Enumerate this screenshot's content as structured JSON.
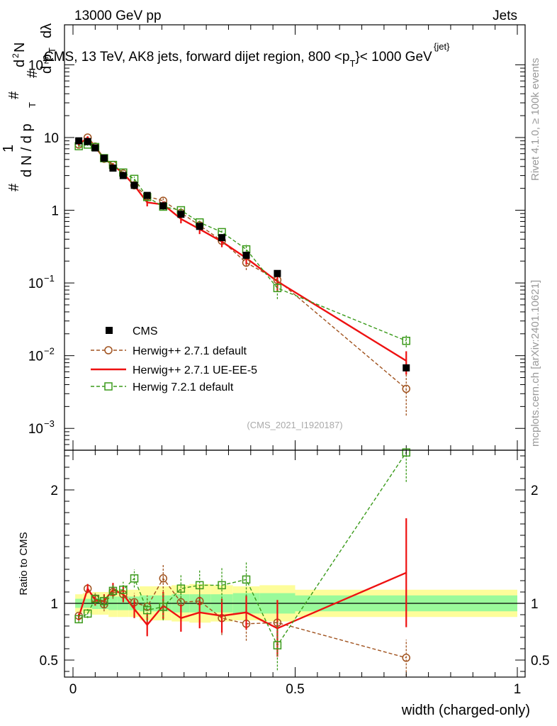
{
  "header": {
    "left": "13000 GeV pp",
    "right": "Jets",
    "side_top": "Rivet 4.1.0, ≥ 100k events",
    "side_bottom": "mcplots.cern.ch [arXiv:2401.10621]",
    "watermark": "(CMS_2021_I1920187)"
  },
  "chart_data": [
    {
      "type": "line",
      "scale": "log",
      "title": "CMS, 13 TeV, AK8 jets, forward dijet region, 800 <p",
      "title_sub": "T",
      "title_sup": "{jet}",
      "title_end": "}< 1000 GeV",
      "ylabel_parts": {
        "one": "1",
        "dN": "d N / d p",
        "T": "T",
        "hash": "#",
        "num": "d",
        "num_sup": "2",
        "num_N": "N",
        "den": "d p",
        "den_T": "T",
        "dl": "dλ"
      },
      "xlim": [
        0,
        1
      ],
      "ylim_log10": [
        -3.3,
        2.55
      ],
      "y_ticks": [
        {
          "exp": -3,
          "label": "10",
          "sup": "−3"
        },
        {
          "exp": -2,
          "label": "10",
          "sup": "−2"
        },
        {
          "exp": -1,
          "label": "10",
          "sup": "−1"
        },
        {
          "exp": 0,
          "label": "1",
          "sup": ""
        },
        {
          "exp": 1,
          "label": "10",
          "sup": ""
        },
        {
          "exp": 2,
          "label": "10",
          "sup": "2"
        }
      ],
      "legend": [
        {
          "name": "CMS",
          "style": "data"
        },
        {
          "name": "Herwig++ 2.7.1 default",
          "style": "brown"
        },
        {
          "name": "Herwig++ 2.7.1 UE-EE-5",
          "style": "red"
        },
        {
          "name": "Herwig 7.2.1 default",
          "style": "green"
        }
      ],
      "data_points": {
        "x": [
          0.013,
          0.033,
          0.05,
          0.07,
          0.09,
          0.113,
          0.138,
          0.167,
          0.203,
          0.243,
          0.285,
          0.335,
          0.39,
          0.46,
          0.75
        ],
        "y": [
          9.0,
          8.8,
          7.2,
          5.2,
          3.8,
          3.0,
          2.2,
          1.6,
          1.15,
          0.88,
          0.6,
          0.42,
          0.24,
          0.135,
          0.0068
        ],
        "bins": [
          [
            0.005,
            0.022
          ],
          [
            0.022,
            0.043
          ],
          [
            0.043,
            0.058
          ],
          [
            0.058,
            0.08
          ],
          [
            0.08,
            0.1
          ],
          [
            0.1,
            0.125
          ],
          [
            0.125,
            0.15
          ],
          [
            0.15,
            0.185
          ],
          [
            0.185,
            0.222
          ],
          [
            0.222,
            0.262
          ],
          [
            0.262,
            0.31
          ],
          [
            0.31,
            0.36
          ],
          [
            0.36,
            0.42
          ],
          [
            0.42,
            0.5
          ],
          [
            0.5,
            1.0
          ]
        ]
      },
      "series": [
        {
          "name": "Herwig++ 2.7.1 default",
          "color": "#a0521e",
          "dashed": true,
          "marker": "circle",
          "x": [
            0.013,
            0.033,
            0.05,
            0.07,
            0.09,
            0.113,
            0.138,
            0.167,
            0.203,
            0.243,
            0.285,
            0.335,
            0.39,
            0.46,
            0.75
          ],
          "y": [
            8.0,
            10.0,
            7.5,
            5.1,
            4.2,
            3.2,
            2.2,
            1.55,
            1.35,
            0.92,
            0.62,
            0.38,
            0.19,
            0.11,
            0.0035
          ],
          "err": [
            0.3,
            0.4,
            0.3,
            0.3,
            0.25,
            0.2,
            0.15,
            0.15,
            0.12,
            0.1,
            0.08,
            0.06,
            0.04,
            0.03,
            0.002
          ]
        },
        {
          "name": "Herwig++ 2.7.1 UE-EE-5",
          "color": "#ee1111",
          "dashed": false,
          "marker": "none",
          "x": [
            0.013,
            0.033,
            0.05,
            0.07,
            0.09,
            0.113,
            0.138,
            0.167,
            0.203,
            0.243,
            0.285,
            0.335,
            0.39,
            0.46,
            0.75
          ],
          "y": [
            8.0,
            10.0,
            7.5,
            5.1,
            4.2,
            3.2,
            2.2,
            1.28,
            1.2,
            0.76,
            0.55,
            0.37,
            0.22,
            0.105,
            0.0085
          ],
          "err": [
            0.3,
            0.4,
            0.3,
            0.3,
            0.25,
            0.2,
            0.15,
            0.15,
            0.12,
            0.1,
            0.08,
            0.06,
            0.04,
            0.03,
            0.003
          ]
        },
        {
          "name": "Herwig 7.2.1 default",
          "color": "#3a9a1a",
          "dashed": true,
          "marker": "square",
          "x": [
            0.013,
            0.033,
            0.05,
            0.07,
            0.09,
            0.113,
            0.138,
            0.167,
            0.203,
            0.243,
            0.285,
            0.335,
            0.39,
            0.46,
            0.75
          ],
          "y": [
            7.6,
            8.0,
            7.4,
            5.2,
            4.2,
            3.3,
            2.7,
            1.52,
            1.12,
            1.0,
            0.68,
            0.5,
            0.29,
            0.085,
            0.016
          ],
          "err": [
            0.3,
            0.3,
            0.3,
            0.3,
            0.25,
            0.2,
            0.2,
            0.15,
            0.12,
            0.1,
            0.08,
            0.06,
            0.05,
            0.025,
            0.003
          ]
        }
      ]
    },
    {
      "type": "line",
      "ylabel": "Ratio to CMS",
      "xlabel": "width (charged-only)",
      "xlim": [
        0,
        1
      ],
      "ylim": [
        0.35,
        2.35
      ],
      "x_ticks": [
        {
          "v": 0,
          "label": "0"
        },
        {
          "v": 0.5,
          "label": "0.5"
        },
        {
          "v": 1,
          "label": "1"
        }
      ],
      "y_ticks": [
        {
          "v": 0.5,
          "label": "0.5"
        },
        {
          "v": 1,
          "label": "1"
        },
        {
          "v": 2,
          "label": "2"
        }
      ],
      "bands": {
        "bins": [
          [
            0.005,
            0.022
          ],
          [
            0.022,
            0.043
          ],
          [
            0.043,
            0.058
          ],
          [
            0.058,
            0.08
          ],
          [
            0.08,
            0.1
          ],
          [
            0.1,
            0.125
          ],
          [
            0.125,
            0.15
          ],
          [
            0.15,
            0.185
          ],
          [
            0.185,
            0.222
          ],
          [
            0.222,
            0.262
          ],
          [
            0.262,
            0.31
          ],
          [
            0.31,
            0.36
          ],
          [
            0.36,
            0.42
          ],
          [
            0.42,
            0.5
          ],
          [
            0.5,
            1.0
          ]
        ],
        "stat": [
          0.04,
          0.04,
          0.05,
          0.05,
          0.06,
          0.06,
          0.06,
          0.07,
          0.07,
          0.08,
          0.08,
          0.08,
          0.09,
          0.09,
          0.07
        ],
        "total": [
          0.08,
          0.09,
          0.1,
          0.1,
          0.12,
          0.12,
          0.12,
          0.15,
          0.15,
          0.16,
          0.17,
          0.16,
          0.15,
          0.16,
          0.12
        ]
      },
      "series": [
        {
          "name": "Herwig++ 2.7.1 default",
          "color": "#a0521e",
          "dashed": true,
          "marker": "circle",
          "x": [
            0.013,
            0.033,
            0.05,
            0.07,
            0.09,
            0.113,
            0.138,
            0.167,
            0.203,
            0.243,
            0.285,
            0.335,
            0.39,
            0.46,
            0.75
          ],
          "y": [
            0.89,
            1.13,
            1.04,
            0.99,
            1.1,
            1.08,
            1.01,
            0.97,
            1.22,
            1.01,
            1.02,
            0.87,
            0.82,
            0.83,
            0.52
          ],
          "err": [
            0.03,
            0.04,
            0.05,
            0.06,
            0.06,
            0.07,
            0.08,
            0.1,
            0.12,
            0.12,
            0.14,
            0.15,
            0.15,
            0.2,
            0.16
          ]
        },
        {
          "name": "Herwig++ 2.7.1 UE-EE-5",
          "color": "#ee1111",
          "dashed": false,
          "marker": "none",
          "x": [
            0.013,
            0.033,
            0.05,
            0.07,
            0.09,
            0.113,
            0.138,
            0.167,
            0.203,
            0.243,
            0.285,
            0.335,
            0.39,
            0.46,
            0.75
          ],
          "y": [
            0.88,
            1.13,
            1.03,
            1.02,
            1.12,
            1.08,
            0.95,
            0.81,
            0.98,
            0.87,
            0.92,
            0.89,
            0.92,
            0.78,
            1.27
          ],
          "err": [
            0.03,
            0.04,
            0.05,
            0.06,
            0.06,
            0.07,
            0.08,
            0.1,
            0.12,
            0.12,
            0.14,
            0.15,
            0.15,
            0.25,
            0.48
          ]
        },
        {
          "name": "Herwig 7.2.1 default",
          "color": "#3a9a1a",
          "dashed": true,
          "marker": "square",
          "x": [
            0.013,
            0.033,
            0.05,
            0.07,
            0.09,
            0.113,
            0.138,
            0.167,
            0.203,
            0.243,
            0.285,
            0.335,
            0.39,
            0.46,
            0.75
          ],
          "y": [
            0.86,
            0.91,
            1.04,
            1.02,
            1.11,
            1.12,
            1.22,
            0.94,
            0.97,
            1.13,
            1.16,
            1.16,
            1.21,
            0.63,
            2.37
          ],
          "err": [
            0.03,
            0.04,
            0.05,
            0.06,
            0.06,
            0.07,
            0.08,
            0.1,
            0.12,
            0.12,
            0.14,
            0.15,
            0.15,
            0.22,
            0.3
          ]
        }
      ]
    }
  ]
}
